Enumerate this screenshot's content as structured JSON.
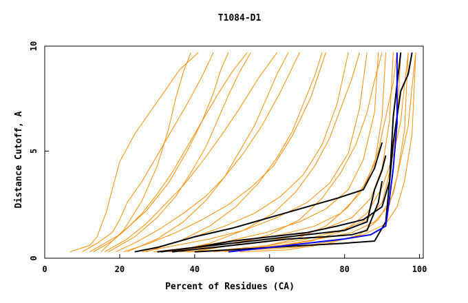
{
  "colors": {
    "background": "#ffffff",
    "orange": "#ff8c00",
    "black": "#000000",
    "blue": "#0000ff"
  },
  "chart_data": {
    "type": "line",
    "title": "T1084-D1",
    "xlabel": "Percent of Residues (CA)",
    "ylabel": "Distance Cutoff, A",
    "xlim": [
      0,
      101
    ],
    "ylim": [
      0,
      9.9
    ],
    "xticks": [
      0,
      20,
      40,
      60,
      80,
      100
    ],
    "xtick_labels": [
      "0",
      "20",
      "40",
      "60",
      "80",
      "100"
    ],
    "yticks": [
      0,
      5,
      10
    ],
    "ytick_labels": [
      "0",
      "5",
      "10"
    ],
    "grid": false,
    "legend": "none",
    "series": [
      {
        "color": "orange",
        "x": [
          6.7,
          12,
          14,
          15,
          16.5,
          18,
          20,
          24,
          28,
          32,
          36,
          41
        ],
        "y": [
          0.3,
          0.6,
          1.0,
          1.5,
          2.2,
          3.2,
          4.5,
          5.8,
          6.8,
          7.8,
          8.8,
          9.6
        ]
      },
      {
        "color": "orange",
        "x": [
          10,
          14,
          18,
          20,
          22,
          26,
          30,
          34,
          38,
          42,
          45
        ],
        "y": [
          0.3,
          0.7,
          1.2,
          1.8,
          2.6,
          3.6,
          4.8,
          6.0,
          7.2,
          8.5,
          9.6
        ]
      },
      {
        "color": "orange",
        "x": [
          13,
          18,
          22,
          26,
          30,
          34,
          38,
          42,
          46,
          50,
          54
        ],
        "y": [
          0.3,
          0.8,
          1.4,
          2.1,
          3.0,
          4.0,
          5.2,
          6.4,
          7.6,
          8.7,
          9.6
        ]
      },
      {
        "color": "orange",
        "x": [
          16,
          22,
          27,
          32,
          37,
          42,
          47,
          52,
          57,
          62
        ],
        "y": [
          0.3,
          0.9,
          1.6,
          2.5,
          3.4,
          4.5,
          5.7,
          7.0,
          8.4,
          9.6
        ]
      },
      {
        "color": "orange",
        "x": [
          19,
          25,
          31,
          37,
          43,
          48,
          53,
          58,
          63,
          68
        ],
        "y": [
          0.3,
          0.8,
          1.4,
          2.1,
          2.9,
          3.8,
          4.9,
          6.2,
          7.8,
          9.6
        ]
      },
      {
        "color": "orange",
        "x": [
          21,
          28,
          35,
          42,
          49,
          55,
          61,
          66,
          71,
          75
        ],
        "y": [
          0.3,
          0.7,
          1.2,
          1.8,
          2.5,
          3.3,
          4.3,
          5.7,
          7.5,
          9.6
        ]
      },
      {
        "color": "orange",
        "x": [
          24,
          32,
          40,
          48,
          56,
          63,
          69,
          74,
          78,
          81
        ],
        "y": [
          0.3,
          0.6,
          1.0,
          1.5,
          2.1,
          2.9,
          3.9,
          5.3,
          7.2,
          9.6
        ]
      },
      {
        "color": "orange",
        "x": [
          26,
          35,
          44,
          53,
          62,
          70,
          76,
          81,
          84,
          86
        ],
        "y": [
          0.3,
          0.6,
          0.9,
          1.3,
          1.9,
          2.6,
          3.5,
          4.9,
          7.0,
          9.6
        ]
      },
      {
        "color": "orange",
        "x": [
          29,
          39,
          49,
          59,
          68,
          75,
          81,
          85,
          88,
          89
        ],
        "y": [
          0.3,
          0.5,
          0.8,
          1.2,
          1.7,
          2.3,
          3.2,
          4.6,
          6.8,
          9.6
        ]
      },
      {
        "color": "orange",
        "x": [
          31,
          42,
          53,
          63,
          72,
          79,
          84,
          88,
          90,
          91
        ],
        "y": [
          0.3,
          0.5,
          0.8,
          1.1,
          1.5,
          2.1,
          3.0,
          4.4,
          6.6,
          9.6
        ]
      },
      {
        "color": "orange",
        "x": [
          33,
          45,
          56,
          66,
          75,
          82,
          87,
          90,
          92,
          93
        ],
        "y": [
          0.3,
          0.5,
          0.7,
          1.0,
          1.4,
          1.9,
          2.8,
          4.2,
          6.4,
          9.6
        ]
      },
      {
        "color": "orange",
        "x": [
          36,
          48,
          60,
          70,
          79,
          86,
          90,
          92,
          94,
          95
        ],
        "y": [
          0.3,
          0.4,
          0.6,
          0.9,
          1.3,
          1.8,
          2.6,
          4.0,
          6.2,
          9.6
        ]
      },
      {
        "color": "orange",
        "x": [
          38,
          51,
          63,
          73,
          82,
          88,
          92,
          94,
          96,
          97
        ],
        "y": [
          0.3,
          0.4,
          0.6,
          0.9,
          1.2,
          1.7,
          2.5,
          3.8,
          6.0,
          9.6
        ]
      },
      {
        "color": "orange",
        "x": [
          41,
          55,
          67,
          77,
          85,
          91,
          94,
          96,
          98,
          99
        ],
        "y": [
          0.3,
          0.4,
          0.5,
          0.8,
          1.1,
          1.6,
          2.4,
          3.6,
          5.8,
          9.6
        ]
      },
      {
        "color": "orange",
        "x": [
          17,
          24,
          30,
          35,
          39,
          43,
          46,
          49,
          52,
          55
        ],
        "y": [
          0.3,
          1.0,
          1.9,
          2.9,
          4.0,
          5.2,
          6.4,
          7.6,
          8.7,
          9.6
        ]
      },
      {
        "color": "orange",
        "x": [
          22,
          30,
          37,
          43,
          48,
          52,
          56,
          59,
          62,
          65
        ],
        "y": [
          0.3,
          0.9,
          1.7,
          2.7,
          3.8,
          5.0,
          6.2,
          7.4,
          8.6,
          9.6
        ]
      },
      {
        "color": "orange",
        "x": [
          27,
          36,
          44,
          51,
          57,
          62,
          66,
          69,
          72,
          74
        ],
        "y": [
          0.3,
          0.8,
          1.5,
          2.4,
          3.5,
          4.7,
          5.9,
          7.2,
          8.5,
          9.6
        ]
      },
      {
        "color": "orange",
        "x": [
          34,
          44,
          53,
          61,
          67,
          72,
          76,
          79,
          82,
          84
        ],
        "y": [
          0.3,
          0.7,
          1.3,
          2.1,
          3.1,
          4.3,
          5.6,
          7.0,
          8.4,
          9.6
        ]
      },
      {
        "color": "orange",
        "x": [
          39,
          50,
          60,
          68,
          74,
          79,
          83,
          86,
          88,
          90
        ],
        "y": [
          0.3,
          0.6,
          1.1,
          1.8,
          2.8,
          4.0,
          5.3,
          6.8,
          8.3,
          9.6
        ]
      },
      {
        "color": "orange",
        "x": [
          45,
          57,
          67,
          75,
          81,
          86,
          89,
          91,
          93,
          94
        ],
        "y": [
          0.3,
          0.5,
          0.9,
          1.5,
          2.4,
          3.6,
          5.0,
          6.6,
          8.2,
          9.6
        ]
      },
      {
        "color": "orange",
        "x": [
          48,
          60,
          71,
          80,
          86,
          90,
          93,
          95,
          96,
          97
        ],
        "y": [
          0.3,
          0.5,
          0.8,
          1.3,
          2.1,
          3.3,
          4.8,
          6.4,
          8.1,
          9.6
        ]
      },
      {
        "color": "orange",
        "x": [
          52,
          65,
          76,
          84,
          89,
          93,
          95,
          97,
          98,
          99
        ],
        "y": [
          0.3,
          0.4,
          0.7,
          1.1,
          1.8,
          3.0,
          4.6,
          6.2,
          8.0,
          9.6
        ]
      },
      {
        "color": "orange",
        "x": [
          12,
          20,
          27,
          33,
          38,
          42,
          45,
          47,
          49
        ],
        "y": [
          0.3,
          1.1,
          2.2,
          3.5,
          5.0,
          6.4,
          7.7,
          8.8,
          9.6
        ]
      },
      {
        "color": "orange",
        "x": [
          15,
          21,
          26,
          30,
          33,
          35,
          37,
          39
        ],
        "y": [
          0.3,
          1.3,
          2.7,
          4.3,
          6.0,
          7.5,
          8.7,
          9.6
        ]
      },
      {
        "color": "black",
        "bold": true,
        "x": [
          24,
          30,
          40,
          50,
          60,
          70,
          78,
          85,
          88,
          90
        ],
        "y": [
          0.3,
          0.5,
          1.0,
          1.4,
          1.9,
          2.4,
          2.8,
          3.2,
          4.2,
          5.4
        ]
      },
      {
        "color": "black",
        "bold": true,
        "x": [
          30,
          40,
          50,
          60,
          70,
          78,
          85,
          90,
          92,
          93,
          95
        ],
        "y": [
          0.3,
          0.5,
          0.8,
          1.0,
          1.2,
          1.5,
          1.8,
          2.4,
          3.6,
          6.6,
          9.6
        ]
      },
      {
        "color": "black",
        "bold": true,
        "x": [
          31,
          40,
          50,
          60,
          70,
          80,
          86,
          88,
          90,
          91
        ],
        "y": [
          0.3,
          0.5,
          0.7,
          0.9,
          1.1,
          1.3,
          1.7,
          3.2,
          4.1,
          4.8
        ]
      },
      {
        "color": "black",
        "bold": true,
        "x": [
          34,
          45,
          55,
          65,
          75,
          82,
          86,
          89,
          90
        ],
        "y": [
          0.3,
          0.5,
          0.7,
          0.9,
          1.0,
          1.1,
          1.3,
          2.6,
          3.6
        ]
      },
      {
        "color": "black",
        "bold": true,
        "x": [
          40,
          50,
          60,
          70,
          80,
          88,
          91,
          93,
          95,
          97,
          98
        ],
        "y": [
          0.3,
          0.4,
          0.5,
          0.6,
          0.7,
          0.8,
          1.7,
          5.4,
          7.8,
          8.6,
          9.6
        ]
      },
      {
        "color": "blue",
        "bold": true,
        "x": [
          49,
          60,
          70,
          80,
          87,
          91,
          92,
          93,
          94,
          94
        ],
        "y": [
          0.3,
          0.5,
          0.7,
          0.9,
          1.1,
          1.5,
          2.8,
          4.2,
          6.3,
          9.6
        ]
      }
    ]
  }
}
